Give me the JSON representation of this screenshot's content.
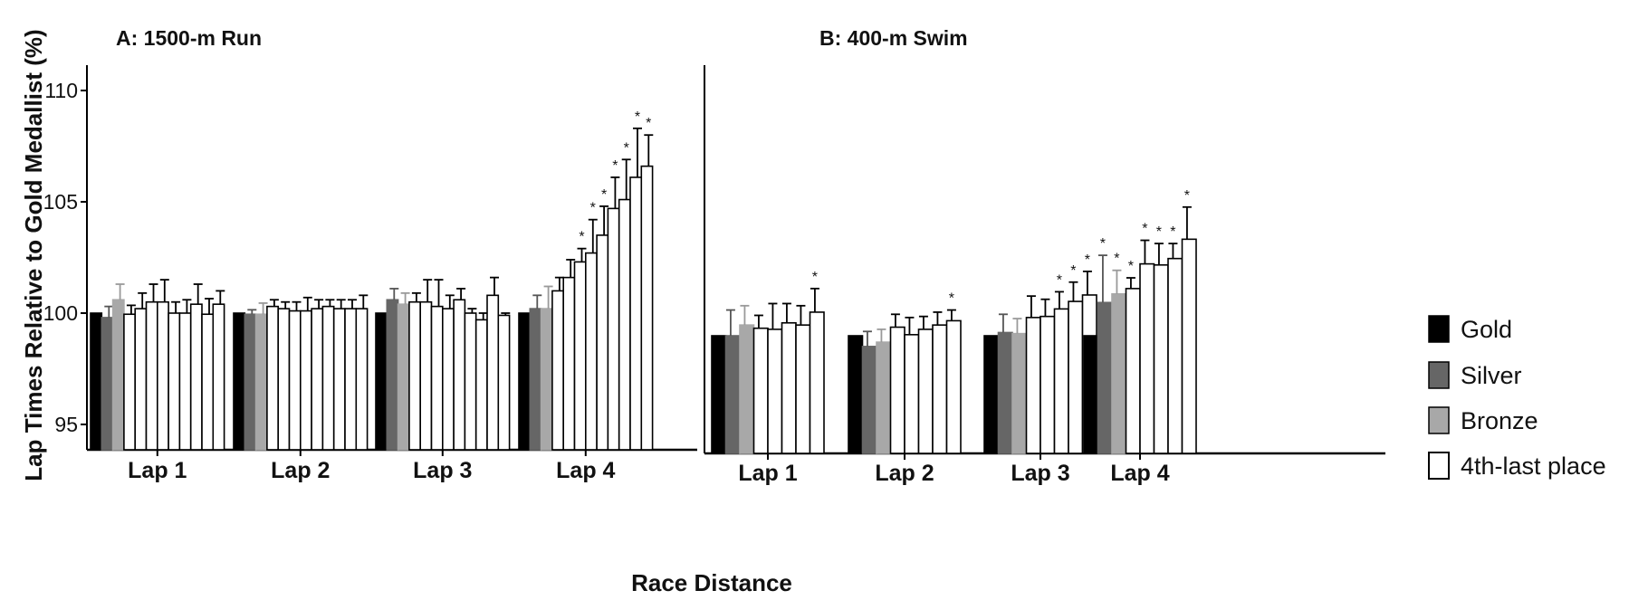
{
  "figure": {
    "y_axis_title": "Lap Times Relative to  Gold   Medallist   (%)",
    "x_axis_title": "Race Distance"
  },
  "legend": {
    "items": [
      {
        "label": "Gold",
        "color": "#000000"
      },
      {
        "label": "Silver",
        "color": "#666666"
      },
      {
        "label": "Bronze",
        "color": "#a8a8a8"
      },
      {
        "label": "4th-last place",
        "color": "#ffffff"
      }
    ]
  },
  "chart_data": [
    {
      "type": "bar",
      "title": "A: 1500-m Run",
      "categories": [
        "Lap 1",
        "Lap 2",
        "Lap 3",
        "Lap 4"
      ],
      "ylim": [
        94.5,
        111
      ],
      "yticks": [
        95,
        100,
        105,
        110
      ],
      "groups": [
        {
          "category": "Lap 1",
          "values": [
            100,
            99.8,
            100.6,
            99.95,
            100.2,
            100.5,
            100.5,
            100.0,
            100.0,
            100.4,
            99.95,
            100.4
          ],
          "errors": [
            0,
            0.5,
            0.7,
            0.4,
            0.7,
            0.8,
            1.0,
            0.5,
            0.6,
            0.9,
            0.7,
            0.6
          ],
          "sig": [
            false,
            false,
            false,
            false,
            false,
            false,
            false,
            false,
            false,
            false,
            false,
            false
          ]
        },
        {
          "category": "Lap 2",
          "values": [
            100,
            99.95,
            99.95,
            100.3,
            100.2,
            100.1,
            100.1,
            100.2,
            100.3,
            100.2,
            100.2,
            100.2
          ],
          "errors": [
            0,
            0.2,
            0.5,
            0.3,
            0.3,
            0.4,
            0.6,
            0.4,
            0.3,
            0.4,
            0.4,
            0.6
          ],
          "sig": [
            false,
            false,
            false,
            false,
            false,
            false,
            false,
            false,
            false,
            false,
            false,
            false
          ]
        },
        {
          "category": "Lap 3",
          "values": [
            100,
            100.6,
            100.4,
            100.5,
            100.5,
            100.3,
            100.2,
            100.6,
            100.0,
            99.7,
            100.8,
            99.9
          ],
          "errors": [
            0,
            0.5,
            0.5,
            0.4,
            1.0,
            1.2,
            0.6,
            0.5,
            0.2,
            0.3,
            0.8,
            0.1
          ],
          "sig": [
            false,
            false,
            false,
            false,
            false,
            false,
            false,
            false,
            false,
            false,
            false,
            false
          ]
        },
        {
          "category": "Lap 4",
          "values": [
            100,
            100.2,
            100.2,
            101.0,
            101.6,
            102.3,
            102.7,
            103.5,
            104.7,
            105.1,
            106.1,
            106.6
          ],
          "errors": [
            0,
            0.6,
            1.0,
            0.6,
            0.8,
            0.6,
            1.5,
            1.3,
            1.4,
            1.8,
            2.2,
            1.4
          ],
          "sig": [
            false,
            false,
            false,
            false,
            false,
            true,
            true,
            true,
            true,
            true,
            true,
            true
          ]
        }
      ]
    },
    {
      "type": "bar",
      "title": "B: 400-m  Swim",
      "categories": [
        "Lap 1",
        "Lap 2",
        "Lap 3",
        "Lap 4"
      ],
      "ylim": [
        94.5,
        111
      ],
      "groups": [
        {
          "category": "Lap 1",
          "values": [
            99,
            99.0,
            99.5,
            99.35,
            99.3,
            99.6,
            99.5,
            100.1
          ],
          "errors": [
            0,
            1.2,
            0.9,
            0.6,
            1.2,
            0.9,
            0.9,
            1.1
          ],
          "sig": [
            false,
            false,
            false,
            false,
            false,
            false,
            false,
            true
          ]
        },
        {
          "category": "Lap 2",
          "values": [
            99,
            98.5,
            98.7,
            99.4,
            99.05,
            99.3,
            99.5,
            99.7
          ],
          "errors": [
            0,
            0.7,
            0.6,
            0.6,
            0.8,
            0.6,
            0.6,
            0.5
          ],
          "sig": [
            false,
            false,
            false,
            false,
            false,
            false,
            false,
            true
          ]
        },
        {
          "category": "Lap 3",
          "values": [
            99,
            99.15,
            99.1,
            99.85,
            99.9,
            100.25,
            100.6,
            100.9
          ],
          "errors": [
            0,
            0.85,
            0.7,
            1.0,
            0.8,
            0.8,
            0.9,
            1.1
          ],
          "sig": [
            false,
            false,
            false,
            false,
            false,
            true,
            true,
            true
          ]
        },
        {
          "category": "Lap 4",
          "values": [
            99,
            100.55,
            100.95,
            101.2,
            102.35,
            102.3,
            102.6,
            103.5
          ],
          "errors": [
            0,
            2.2,
            1.1,
            0.5,
            1.1,
            1.0,
            0.7,
            1.5
          ],
          "sig": [
            false,
            true,
            true,
            true,
            true,
            true,
            true,
            true
          ]
        }
      ]
    }
  ]
}
